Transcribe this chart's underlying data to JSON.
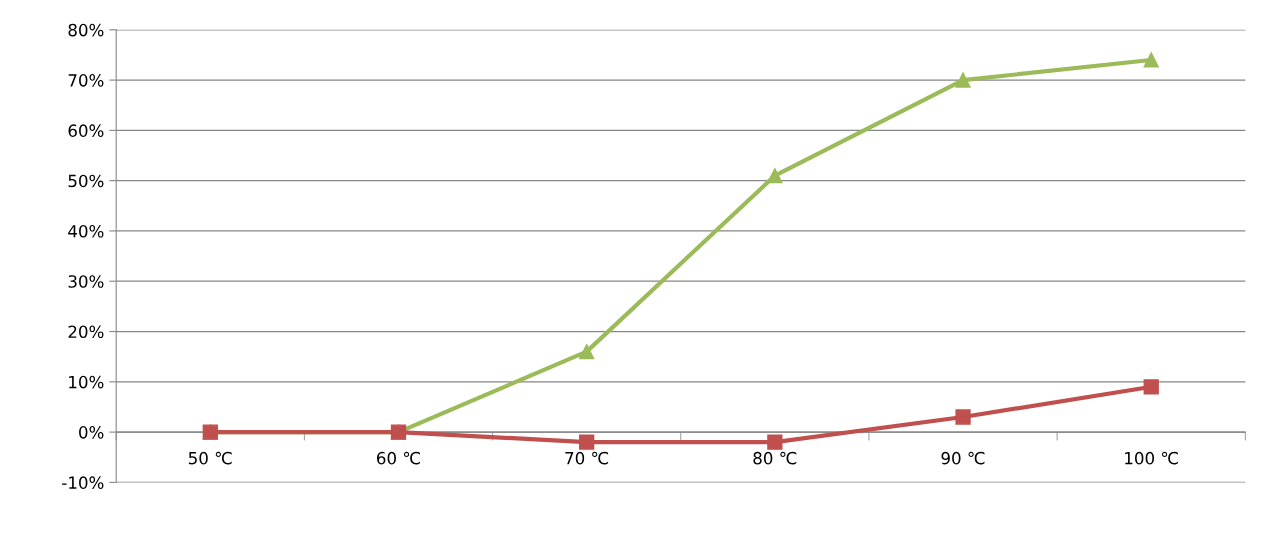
{
  "chart_data": {
    "type": "line",
    "categories": [
      "50 ℃",
      "60 ℃",
      "70 ℃",
      "80 ℃",
      "90 ℃",
      "100 ℃"
    ],
    "series": [
      {
        "color": "#9bbb59",
        "values": [
          0,
          0,
          16,
          51,
          70,
          74
        ],
        "marker": "triangle"
      },
      {
        "color": "#c0504d",
        "values": [
          0,
          0,
          -2,
          -2,
          3,
          9
        ],
        "marker": "square"
      }
    ],
    "ylim": [
      -10,
      80
    ],
    "yticks": [
      {
        "value": -10,
        "label": "-10%"
      },
      {
        "value": 0,
        "label": "0%"
      },
      {
        "value": 10,
        "label": "10%"
      },
      {
        "value": 20,
        "label": "20%"
      },
      {
        "value": 30,
        "label": "30%"
      },
      {
        "value": 40,
        "label": "40%"
      },
      {
        "value": 50,
        "label": "50%"
      },
      {
        "value": 60,
        "label": "60%"
      },
      {
        "value": 70,
        "label": "70%"
      },
      {
        "value": 80,
        "label": "80%"
      }
    ],
    "grid": "y",
    "line_style": "solid"
  }
}
